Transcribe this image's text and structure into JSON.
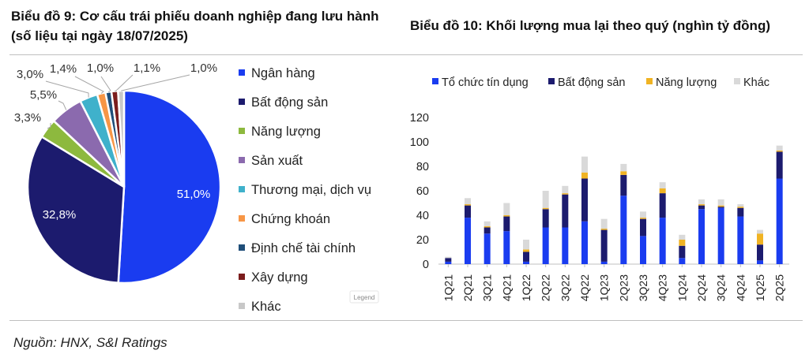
{
  "charts": {
    "left_title": "Biểu đồ 9: Cơ cấu trái phiếu doanh nghiệp đang lưu hành (số liệu tại ngày 18/07/2025)",
    "right_title": "Biểu đồ 10: Khối lượng mua lại theo quý (nghìn tỷ đồng)"
  },
  "watermark": "Legend",
  "source": "Nguồn: HNX, S&I Ratings",
  "chart_data": [
    {
      "type": "pie",
      "title": "Biểu đồ 9: Cơ cấu trái phiếu doanh nghiệp đang lưu hành (số liệu tại ngày 18/07/2025)",
      "legend_position": "right",
      "slices": [
        {
          "name": "Ngân hàng",
          "value": 51.0,
          "label": "51,0%",
          "color": "#1a3cf0"
        },
        {
          "name": "Bất động sản",
          "value": 32.8,
          "label": "32,8%",
          "color": "#1c1b6e"
        },
        {
          "name": "Năng lượng",
          "value": 3.3,
          "label": "3,3%",
          "color": "#8db93e"
        },
        {
          "name": "Sản xuất",
          "value": 5.5,
          "label": "5,5%",
          "color": "#8b6aae"
        },
        {
          "name": "Thương mại, dịch vụ",
          "value": 3.0,
          "label": "3,0%",
          "color": "#3fb1cb"
        },
        {
          "name": "Chứng khoán",
          "value": 1.4,
          "label": "1,4%",
          "color": "#f79646"
        },
        {
          "name": "Định chế tài chính",
          "value": 1.0,
          "label": "1,0%",
          "color": "#1f4e79"
        },
        {
          "name": "Xây dựng",
          "value": 1.1,
          "label": "1,1%",
          "color": "#7b1d1d"
        },
        {
          "name": "Khác",
          "value": 1.0,
          "label": "1,0%",
          "color": "#c8c8c8"
        }
      ]
    },
    {
      "type": "bar",
      "stacked": true,
      "title": "Biểu đồ 10: Khối lượng mua lại theo quý (nghìn tỷ đồng)",
      "legend_position": "top",
      "ylim": [
        0,
        120
      ],
      "yticks": [
        0,
        20,
        40,
        60,
        80,
        100,
        120
      ],
      "grid": false,
      "categories": [
        "1Q21",
        "2Q21",
        "3Q21",
        "4Q21",
        "1Q22",
        "2Q22",
        "3Q22",
        "4Q22",
        "1Q23",
        "2Q23",
        "3Q23",
        "4Q23",
        "1Q24",
        "2Q24",
        "3Q24",
        "4Q24",
        "1Q25",
        "2Q25"
      ],
      "series": [
        {
          "name": "Tổ chức tín dụng",
          "color": "#1a3cf0",
          "values": [
            2,
            38,
            25,
            27,
            2,
            30,
            30,
            35,
            2,
            56,
            23,
            38,
            5,
            45,
            46,
            39,
            3,
            70
          ]
        },
        {
          "name": "Bất động sản",
          "color": "#1c1b6e",
          "values": [
            3,
            10,
            5,
            12,
            8,
            15,
            27,
            35,
            26,
            17,
            14,
            20,
            10,
            3,
            1,
            7,
            13,
            22
          ]
        },
        {
          "name": "Năng lượng",
          "color": "#f0b323",
          "values": [
            0,
            1,
            1,
            1,
            2,
            1,
            1,
            5,
            1,
            3,
            1,
            4,
            5,
            1,
            1,
            1,
            9,
            1
          ]
        },
        {
          "name": "Khác",
          "color": "#d9d9d9",
          "values": [
            1,
            5,
            4,
            10,
            8,
            14,
            6,
            13,
            8,
            6,
            5,
            5,
            4,
            4,
            5,
            2,
            3,
            4
          ]
        }
      ]
    }
  ]
}
